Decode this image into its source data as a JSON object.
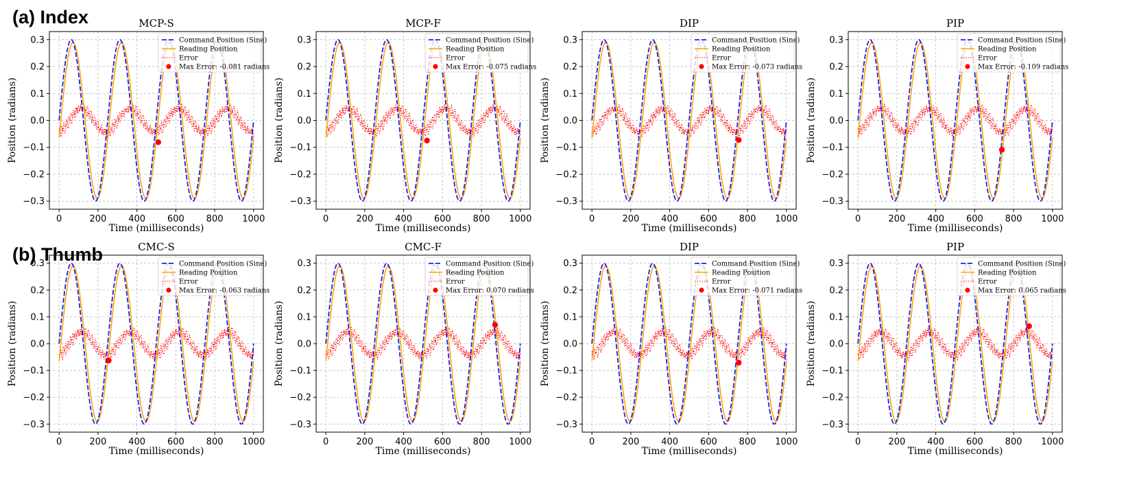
{
  "row_labels": {
    "index": "(a) Index",
    "thumb": "(b) Thumb"
  },
  "colors": {
    "command": "#1f1fe6",
    "reading": "#ffa500",
    "error": "#ff0000",
    "grid": "#b0b0b0"
  },
  "chart_data": [
    {
      "type": "line",
      "row": "index",
      "title": "MCP-S",
      "xlabel": "Time (milliseconds)",
      "ylabel": "Position (radians)",
      "xlim": [
        -50,
        1050
      ],
      "ylim": [
        -0.33,
        0.33
      ],
      "x_ticks": [
        0,
        200,
        400,
        600,
        800,
        1000
      ],
      "x_tick_labels": [
        "0",
        "200",
        "400",
        "600",
        "800",
        "1000"
      ],
      "y_ticks": [
        0.3,
        0.2,
        0.1,
        0.0,
        -0.1,
        -0.2,
        -0.3
      ],
      "y_tick_labels": [
        "0.3",
        "0.2",
        "0.1",
        "0.0",
        "−0.1",
        "−0.2",
        "−0.3"
      ],
      "series": [
        {
          "name": "Command Position (Sine)",
          "style": "dashed",
          "amplitude": 0.3,
          "period_ms": 250
        },
        {
          "name": "Reading Position",
          "style": "solid",
          "amplitude": 0.29,
          "lag_ms": 9
        },
        {
          "name": "Error",
          "style": "dotted",
          "amplitude": 0.05
        },
        {
          "name": "Max Error: -0.081 radians",
          "style": "marker",
          "x": 510,
          "y": -0.081
        }
      ],
      "legend": [
        "Command Position (Sine)",
        "Reading Position",
        "Error",
        "Max Error: -0.081 radians"
      ],
      "legend_position": "upper-right"
    },
    {
      "type": "line",
      "row": "index",
      "title": "MCP-F",
      "xlabel": "Time (milliseconds)",
      "ylabel": "Position (radians)",
      "xlim": [
        -50,
        1050
      ],
      "ylim": [
        -0.33,
        0.33
      ],
      "x_ticks": [
        0,
        200,
        400,
        600,
        800,
        1000
      ],
      "x_tick_labels": [
        "0",
        "200",
        "400",
        "600",
        "800",
        "1000"
      ],
      "y_ticks": [
        0.3,
        0.2,
        0.1,
        0.0,
        -0.1,
        -0.2,
        -0.3
      ],
      "y_tick_labels": [
        "0.3",
        "0.2",
        "0.1",
        "0.0",
        "−0.1",
        "−0.2",
        "−0.3"
      ],
      "series": [
        {
          "name": "Command Position (Sine)",
          "style": "dashed",
          "amplitude": 0.3,
          "period_ms": 250
        },
        {
          "name": "Reading Position",
          "style": "solid",
          "amplitude": 0.29,
          "lag_ms": 9
        },
        {
          "name": "Error",
          "style": "dotted",
          "amplitude": 0.05
        },
        {
          "name": "Max Error: -0.075 radians",
          "style": "marker",
          "x": 520,
          "y": -0.075
        }
      ],
      "legend": [
        "Command Position (Sine)",
        "Reading Position",
        "Error",
        "Max Error: -0.075 radians"
      ],
      "legend_position": "upper-right"
    },
    {
      "type": "line",
      "row": "index",
      "title": "DIP",
      "xlabel": "Time (milliseconds)",
      "ylabel": "Position (radians)",
      "xlim": [
        -50,
        1050
      ],
      "ylim": [
        -0.33,
        0.33
      ],
      "x_ticks": [
        0,
        200,
        400,
        600,
        800,
        1000
      ],
      "x_tick_labels": [
        "0",
        "200",
        "400",
        "600",
        "800",
        "1000"
      ],
      "y_ticks": [
        0.3,
        0.2,
        0.1,
        0.0,
        -0.1,
        -0.2,
        -0.3
      ],
      "y_tick_labels": [
        "0.3",
        "0.2",
        "0.1",
        "0.0",
        "−0.1",
        "−0.2",
        "−0.3"
      ],
      "series": [
        {
          "name": "Command Position (Sine)",
          "style": "dashed",
          "amplitude": 0.3,
          "period_ms": 250
        },
        {
          "name": "Reading Position",
          "style": "solid",
          "amplitude": 0.29,
          "lag_ms": 9
        },
        {
          "name": "Error",
          "style": "dotted",
          "amplitude": 0.05
        },
        {
          "name": "Max Error: -0.073 radians",
          "style": "marker",
          "x": 755,
          "y": -0.073
        }
      ],
      "legend": [
        "Command Position (Sine)",
        "Reading Position",
        "Error",
        "Max Error: -0.073 radians"
      ],
      "legend_position": "upper-right"
    },
    {
      "type": "line",
      "row": "index",
      "title": "PIP",
      "xlabel": "Time (milliseconds)",
      "ylabel": "Position (radians)",
      "xlim": [
        -50,
        1050
      ],
      "ylim": [
        -0.33,
        0.33
      ],
      "x_ticks": [
        0,
        200,
        400,
        600,
        800,
        1000
      ],
      "x_tick_labels": [
        "0",
        "200",
        "400",
        "600",
        "800",
        "1000"
      ],
      "y_ticks": [
        0.3,
        0.2,
        0.1,
        0.0,
        -0.1,
        -0.2,
        -0.3
      ],
      "y_tick_labels": [
        "0.3",
        "0.2",
        "0.1",
        "0.0",
        "−0.1",
        "−0.2",
        "−0.3"
      ],
      "series": [
        {
          "name": "Command Position (Sine)",
          "style": "dashed",
          "amplitude": 0.3,
          "period_ms": 250
        },
        {
          "name": "Reading Position",
          "style": "solid",
          "amplitude": 0.29,
          "lag_ms": 9
        },
        {
          "name": "Error",
          "style": "dotted",
          "amplitude": 0.05
        },
        {
          "name": "Max Error: -0.109 radians",
          "style": "marker",
          "x": 740,
          "y": -0.109
        }
      ],
      "legend": [
        "Command Position (Sine)",
        "Reading Position",
        "Error",
        "Max Error: -0.109 radians"
      ],
      "legend_position": "upper-right"
    },
    {
      "type": "line",
      "row": "thumb",
      "title": "CMC-S",
      "xlabel": "Time (milliseconds)",
      "ylabel": "Position (radians)",
      "xlim": [
        -50,
        1050
      ],
      "ylim": [
        -0.33,
        0.33
      ],
      "x_ticks": [
        0,
        200,
        400,
        600,
        800,
        1000
      ],
      "x_tick_labels": [
        "0",
        "200",
        "400",
        "600",
        "800",
        "1000"
      ],
      "y_ticks": [
        0.3,
        0.2,
        0.1,
        0.0,
        -0.1,
        -0.2,
        -0.3
      ],
      "y_tick_labels": [
        "0.3",
        "0.2",
        "0.1",
        "0.0",
        "−0.1",
        "−0.2",
        "−0.3"
      ],
      "series": [
        {
          "name": "Command Position (Sine)",
          "style": "dashed",
          "amplitude": 0.3,
          "period_ms": 250
        },
        {
          "name": "Reading Position",
          "style": "solid",
          "amplitude": 0.29,
          "lag_ms": 9
        },
        {
          "name": "Error",
          "style": "dotted",
          "amplitude": 0.05
        },
        {
          "name": "Max Error: -0.063 radians",
          "style": "marker",
          "x": 255,
          "y": -0.063
        }
      ],
      "legend": [
        "Command Position (Sine)",
        "Reading Position",
        "Error",
        "Max Error: -0.063 radians"
      ],
      "legend_position": "upper-right"
    },
    {
      "type": "line",
      "row": "thumb",
      "title": "CMC-F",
      "xlabel": "Time (milliseconds)",
      "ylabel": "Position (radians)",
      "xlim": [
        -50,
        1050
      ],
      "ylim": [
        -0.33,
        0.33
      ],
      "x_ticks": [
        0,
        200,
        400,
        600,
        800,
        1000
      ],
      "x_tick_labels": [
        "0",
        "200",
        "400",
        "600",
        "800",
        "1000"
      ],
      "y_ticks": [
        0.3,
        0.2,
        0.1,
        0.0,
        -0.1,
        -0.2,
        -0.3
      ],
      "y_tick_labels": [
        "0.3",
        "0.2",
        "0.1",
        "0.0",
        "−0.1",
        "−0.2",
        "−0.3"
      ],
      "series": [
        {
          "name": "Command Position (Sine)",
          "style": "dashed",
          "amplitude": 0.3,
          "period_ms": 250
        },
        {
          "name": "Reading Position",
          "style": "solid",
          "amplitude": 0.29,
          "lag_ms": 9
        },
        {
          "name": "Error",
          "style": "dotted",
          "amplitude": 0.05
        },
        {
          "name": "Max Error: 0.070 radians",
          "style": "marker",
          "x": 870,
          "y": 0.07
        }
      ],
      "legend": [
        "Command Position (Sine)",
        "Reading Position",
        "Error",
        "Max Error: 0.070 radians"
      ],
      "legend_position": "upper-right"
    },
    {
      "type": "line",
      "row": "thumb",
      "title": "DIP",
      "xlabel": "Time (milliseconds)",
      "ylabel": "Position (radians)",
      "xlim": [
        -50,
        1050
      ],
      "ylim": [
        -0.33,
        0.33
      ],
      "x_ticks": [
        0,
        200,
        400,
        600,
        800,
        1000
      ],
      "x_tick_labels": [
        "0",
        "200",
        "400",
        "600",
        "800",
        "1000"
      ],
      "y_ticks": [
        0.3,
        0.2,
        0.1,
        0.0,
        -0.1,
        -0.2,
        -0.3
      ],
      "y_tick_labels": [
        "0.3",
        "0.2",
        "0.1",
        "0.0",
        "−0.1",
        "−0.2",
        "−0.3"
      ],
      "series": [
        {
          "name": "Command Position (Sine)",
          "style": "dashed",
          "amplitude": 0.3,
          "period_ms": 250
        },
        {
          "name": "Reading Position",
          "style": "solid",
          "amplitude": 0.29,
          "lag_ms": 9
        },
        {
          "name": "Error",
          "style": "dotted",
          "amplitude": 0.05
        },
        {
          "name": "Max Error: -0.071 radians",
          "style": "marker",
          "x": 755,
          "y": -0.071
        }
      ],
      "legend": [
        "Command Position (Sine)",
        "Reading Position",
        "Error",
        "Max Error: -0.071 radians"
      ],
      "legend_position": "upper-right"
    },
    {
      "type": "line",
      "row": "thumb",
      "title": "PIP",
      "xlabel": "Time (milliseconds)",
      "ylabel": "Position (radians)",
      "xlim": [
        -50,
        1050
      ],
      "ylim": [
        -0.33,
        0.33
      ],
      "x_ticks": [
        0,
        200,
        400,
        600,
        800,
        1000
      ],
      "x_tick_labels": [
        "0",
        "200",
        "400",
        "600",
        "800",
        "1000"
      ],
      "y_ticks": [
        0.3,
        0.2,
        0.1,
        0.0,
        -0.1,
        -0.2,
        -0.3
      ],
      "y_tick_labels": [
        "0.3",
        "0.2",
        "0.1",
        "0.0",
        "−0.1",
        "−0.2",
        "−0.3"
      ],
      "series": [
        {
          "name": "Command Position (Sine)",
          "style": "dashed",
          "amplitude": 0.3,
          "period_ms": 250
        },
        {
          "name": "Reading Position",
          "style": "solid",
          "amplitude": 0.29,
          "lag_ms": 9
        },
        {
          "name": "Error",
          "style": "dotted",
          "amplitude": 0.05
        },
        {
          "name": "Max Error: 0.065 radians",
          "style": "marker",
          "x": 880,
          "y": 0.065
        }
      ],
      "legend": [
        "Command Position (Sine)",
        "Reading Position",
        "Error",
        "Max Error: 0.065 radians"
      ],
      "legend_position": "upper-right"
    }
  ]
}
